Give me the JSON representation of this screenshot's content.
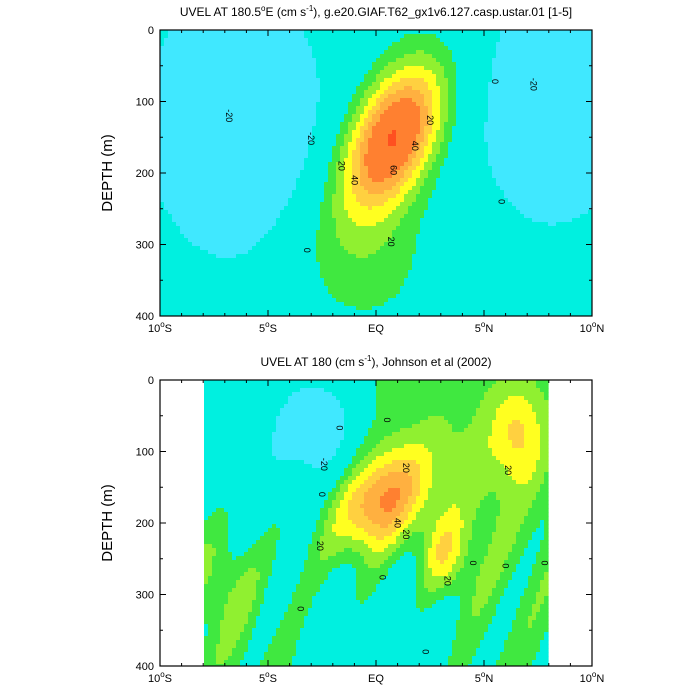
{
  "chart_data": [
    {
      "type": "contour",
      "title_parts": [
        "UVEL AT 180.5",
        "o",
        "E (cm s",
        "-1",
        "), g.e20.GIAF.T62_gx1v6.127.casp.ustar.01 [1-5]"
      ],
      "ylabel": "DEPTH (m)",
      "xlim": [
        -10,
        10
      ],
      "ylim": [
        400,
        0
      ],
      "xticks": [
        {
          "value": -10,
          "label": "10",
          "sup": "o",
          "tail": "S"
        },
        {
          "value": -5,
          "label": "5",
          "sup": "o",
          "tail": "S"
        },
        {
          "value": 0,
          "label": "EQ",
          "sup": "",
          "tail": ""
        },
        {
          "value": 5,
          "label": "5",
          "sup": "o",
          "tail": "N"
        },
        {
          "value": 10,
          "label": "10",
          "sup": "o",
          "tail": "N"
        }
      ],
      "yticks": [
        0,
        100,
        200,
        300,
        400
      ],
      "contour_interval": 10,
      "colors": [
        "#40e8ff",
        "#00f0e0",
        "#40e840",
        "#90f030",
        "#ffff20",
        "#ffd040",
        "#ffb040",
        "#ff8030",
        "#ff5020"
      ],
      "core": {
        "lat": 0.8,
        "depth": 150,
        "max": 80
      },
      "contour_labels": [
        {
          "lat": -6.8,
          "depth": 120,
          "text": "-20"
        },
        {
          "lat": -3,
          "depth": 152,
          "text": "-20"
        },
        {
          "lat": -1.6,
          "depth": 190,
          "text": "20"
        },
        {
          "lat": -1.0,
          "depth": 210,
          "text": "40"
        },
        {
          "lat": 2.5,
          "depth": 126,
          "text": "20"
        },
        {
          "lat": 1.8,
          "depth": 162,
          "text": "40"
        },
        {
          "lat": 0.8,
          "depth": 196,
          "text": "60"
        },
        {
          "lat": 0.7,
          "depth": 296,
          "text": "20"
        },
        {
          "lat": -3.2,
          "depth": 308,
          "text": "0"
        },
        {
          "lat": 5.5,
          "depth": 72,
          "text": "0"
        },
        {
          "lat": 5.8,
          "depth": 240,
          "text": "0"
        },
        {
          "lat": 7.3,
          "depth": 76,
          "text": "-20"
        }
      ]
    },
    {
      "type": "contour",
      "title_parts": [
        "UVEL AT 180 (cm s",
        "-1",
        "), Johnson et al (2002)"
      ],
      "ylabel": "DEPTH (m)",
      "xlim": [
        -10,
        10
      ],
      "ylim": [
        400,
        0
      ],
      "xticks": [
        {
          "value": -10,
          "label": "10",
          "sup": "o",
          "tail": "S"
        },
        {
          "value": -5,
          "label": "5",
          "sup": "o",
          "tail": "S"
        },
        {
          "value": 0,
          "label": "EQ",
          "sup": "",
          "tail": ""
        },
        {
          "value": 5,
          "label": "5",
          "sup": "o",
          "tail": "N"
        },
        {
          "value": 10,
          "label": "10",
          "sup": "o",
          "tail": "N"
        }
      ],
      "yticks": [
        0,
        100,
        200,
        300,
        400
      ],
      "data_extent": {
        "lat": [
          -8,
          8
        ]
      },
      "contour_interval": 10,
      "colors": [
        "#40e8ff",
        "#00f0e0",
        "#40e840",
        "#90f030",
        "#ffff20",
        "#ffd040",
        "#ffb040",
        "#ff8030",
        "#ff5020"
      ],
      "core": {
        "lat": 0.2,
        "depth": 168,
        "max": 50
      },
      "contour_labels": [
        {
          "lat": -2.4,
          "depth": 118,
          "text": "-20"
        },
        {
          "lat": 1.4,
          "depth": 123,
          "text": "20"
        },
        {
          "lat": 6.1,
          "depth": 126,
          "text": "20"
        },
        {
          "lat": -2.5,
          "depth": 160,
          "text": "0"
        },
        {
          "lat": 1.0,
          "depth": 200,
          "text": "40"
        },
        {
          "lat": 1.4,
          "depth": 216,
          "text": "20"
        },
        {
          "lat": -2.6,
          "depth": 232,
          "text": "20"
        },
        {
          "lat": 3.3,
          "depth": 281,
          "text": "20"
        },
        {
          "lat": 0.3,
          "depth": 276,
          "text": "0"
        },
        {
          "lat": -3.5,
          "depth": 320,
          "text": "0"
        },
        {
          "lat": 4.5,
          "depth": 256,
          "text": "0"
        },
        {
          "lat": 6.0,
          "depth": 260,
          "text": "0"
        },
        {
          "lat": 7.8,
          "depth": 256,
          "text": "0"
        },
        {
          "lat": 2.3,
          "depth": 380,
          "text": "0"
        },
        {
          "lat": -1.7,
          "depth": 67,
          "text": "0"
        },
        {
          "lat": 0.5,
          "depth": 56,
          "text": "0"
        }
      ]
    }
  ]
}
